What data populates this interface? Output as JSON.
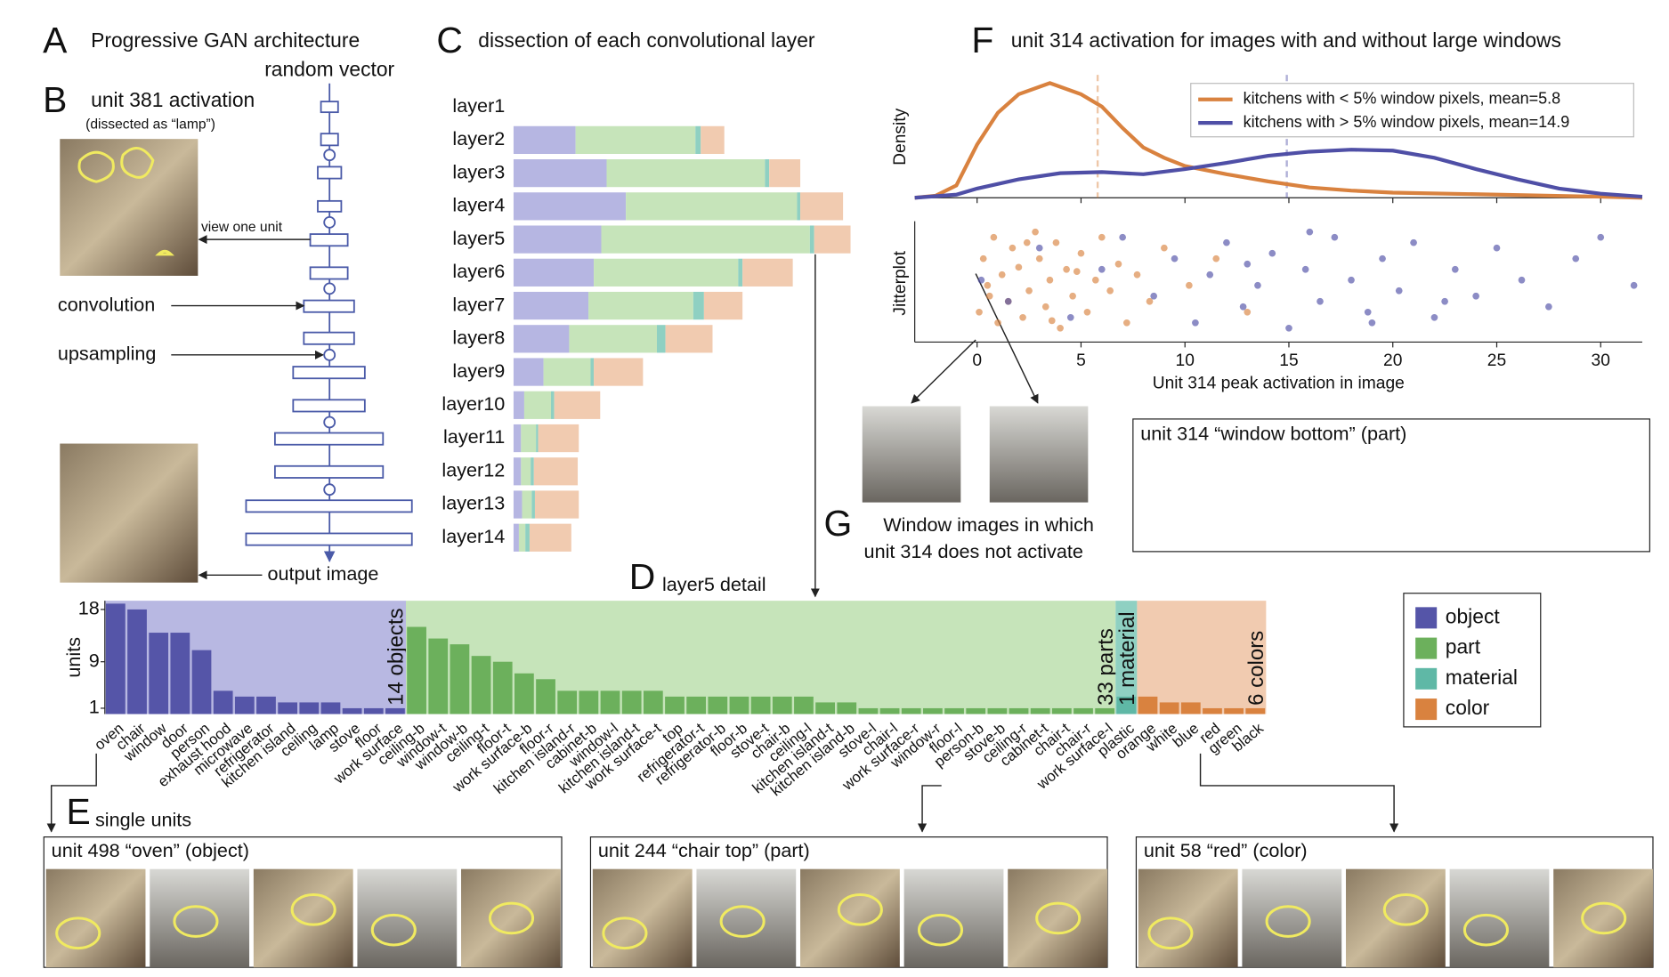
{
  "labels": {
    "A": "A",
    "a_title": "Progressive GAN architecture",
    "random_vector": "random vector",
    "B": "B",
    "b_title": "unit 381 activation",
    "b_sub": "(dissected as “lamp”)",
    "view_one_unit": "view one unit",
    "convolution": "convolution",
    "upsampling": "upsampling",
    "output_image": "output image",
    "C": "C",
    "D": "D",
    "E": "E",
    "e_title": "single units",
    "e1": "unit 498 “oven” (object)",
    "e2": "unit 244 “chair top” (part)",
    "e3": "unit 58 “red” (color)",
    "F": "F",
    "G": "G",
    "g1": "Window images in which",
    "g2": "unit 314 does not activate",
    "g_unit": "unit 314 “window bottom” (part)"
  },
  "chart_data": [
    {
      "type": "hstack",
      "title": "dissection of each convolutional layer",
      "categories": [
        "layer1",
        "layer2",
        "layer3",
        "layer4",
        "layer5",
        "layer6",
        "layer7",
        "layer8",
        "layer9",
        "layer10",
        "layer11",
        "layer12",
        "layer13",
        "layer14"
      ],
      "series": [
        {
          "color": "#b6b6e2",
          "values": [
            0,
            58,
            87,
            105,
            82,
            75,
            70,
            52,
            28,
            10,
            7,
            7,
            8,
            5
          ]
        },
        {
          "color": "#c6e4ba",
          "values": [
            0,
            112,
            148,
            160,
            195,
            135,
            98,
            82,
            44,
            25,
            14,
            9,
            9,
            6
          ]
        },
        {
          "color": "#8fd0c2",
          "values": [
            0,
            5,
            4,
            3,
            4,
            4,
            10,
            8,
            3,
            3,
            2,
            3,
            3,
            4
          ]
        },
        {
          "color": "#f1cbb0",
          "values": [
            0,
            22,
            29,
            40,
            34,
            47,
            36,
            44,
            46,
            43,
            38,
            41,
            41,
            39
          ]
        }
      ]
    },
    {
      "type": "grouped-bar",
      "title": "layer5 detail",
      "ylabel": "units",
      "ylim": [
        0,
        19.5
      ],
      "yticks": [
        1,
        9,
        18
      ],
      "legend": "right",
      "groups": [
        {
          "name": "object",
          "label": "14 objects",
          "color": "#5555a8",
          "background": "#b8b8e2",
          "categories": [
            "oven",
            "chair",
            "window",
            "door",
            "person",
            "exhaust hood",
            "microwave",
            "refrigerator",
            "kitchen island",
            "ceiling",
            "lamp",
            "stove",
            "floor",
            "work surface"
          ],
          "values": [
            19,
            18,
            14,
            14,
            11,
            4,
            3,
            3,
            2,
            2,
            2,
            1,
            1,
            1
          ]
        },
        {
          "name": "part",
          "label": "33 parts",
          "color": "#6cb05c",
          "background": "#c6e4ba",
          "categories": [
            "ceiling-b",
            "window-t",
            "window-b",
            "ceiling-t",
            "floor-t",
            "work surface-b",
            "floor-r",
            "kitchen island-r",
            "cabinet-b",
            "window-l",
            "kitchen island-t",
            "work surface-t",
            "top",
            "refrigerator-t",
            "refrigerator-b",
            "floor-b",
            "stove-t",
            "chair-b",
            "ceiling-l",
            "kitchen island-t",
            "kitchen island-b",
            "stove-l",
            "chair-l",
            "work surface-r",
            "window-r",
            "floor-l",
            "person-b",
            "stove-b",
            "ceiling-r",
            "cabinet-t",
            "chair-t",
            "chair-r",
            "work surface-l"
          ],
          "values": [
            15,
            13,
            12,
            10,
            9,
            7,
            6,
            4,
            4,
            4,
            4,
            4,
            3,
            3,
            3,
            3,
            3,
            3,
            3,
            2,
            2,
            1,
            1,
            1,
            1,
            1,
            1,
            1,
            1,
            1,
            1,
            1,
            1
          ]
        },
        {
          "name": "material",
          "label": "1 material",
          "color": "#5fb8a6",
          "background": "#8fd0c2",
          "categories": [
            "plastic"
          ],
          "values": [
            3
          ]
        },
        {
          "name": "color",
          "label": "6 colors",
          "color": "#d9823f",
          "background": "#f1cbb0",
          "categories": [
            "orange",
            "white",
            "blue",
            "red",
            "green",
            "black"
          ],
          "values": [
            3,
            2,
            2,
            1,
            1,
            1
          ]
        }
      ]
    },
    {
      "type": "density",
      "title": "unit 314 activation for images with and without large windows",
      "ylabel": "Density",
      "jitter_label": "Jitterplot",
      "xlabel": "Unit 314 peak activation in image",
      "xlim": [
        -3,
        32
      ],
      "xticks": [
        0,
        5,
        10,
        15,
        20,
        25,
        30
      ],
      "ylim": [
        0,
        0.12
      ],
      "jitter_ylim": [
        0,
        1
      ],
      "legend": "upper right",
      "series": [
        {
          "name": "kitchens with < 5% window pixels, mean=5.8",
          "color": "#d9823f",
          "mean": 5.8,
          "x": [
            -3,
            -2,
            -1,
            0,
            1,
            2,
            3.5,
            5,
            6,
            7,
            8,
            9,
            10,
            12,
            14,
            16,
            18,
            20,
            25,
            30,
            32
          ],
          "values": [
            0,
            0.002,
            0.012,
            0.052,
            0.083,
            0.101,
            0.112,
            0.101,
            0.089,
            0.068,
            0.049,
            0.039,
            0.031,
            0.023,
            0.016,
            0.01,
            0.007,
            0.005,
            0.003,
            0.001,
            0
          ],
          "jitter_x": [
            0.1,
            0.3,
            0.5,
            0.8,
            1.0,
            1.2,
            1.5,
            1.7,
            2.0,
            2.2,
            2.5,
            2.8,
            3.0,
            3.3,
            3.5,
            3.8,
            4.0,
            4.3,
            4.6,
            5.0,
            5.3,
            5.7,
            6.0,
            6.4,
            6.8,
            7.2,
            7.7,
            8.3,
            9.0,
            10.2,
            11.5,
            13.0,
            0.6,
            2.4,
            3.6,
            4.8
          ],
          "jitter_y": [
            0.2,
            0.7,
            0.45,
            0.9,
            0.1,
            0.55,
            0.3,
            0.8,
            0.62,
            0.15,
            0.4,
            0.95,
            0.7,
            0.25,
            0.5,
            0.85,
            0.05,
            0.6,
            0.35,
            0.75,
            0.2,
            0.5,
            0.9,
            0.4,
            0.65,
            0.1,
            0.55,
            0.3,
            0.8,
            0.45,
            0.7,
            0.2,
            0.35,
            0.85,
            0.12,
            0.58
          ]
        },
        {
          "name": "kitchens with > 5% window pixels, mean=14.9",
          "color": "#4f4fa6",
          "mean": 14.9,
          "x": [
            -3,
            -1,
            0,
            2,
            4,
            6,
            8,
            10,
            12,
            14,
            16,
            18,
            20,
            22,
            24,
            26,
            28,
            30,
            32
          ],
          "values": [
            0,
            0.003,
            0.009,
            0.018,
            0.024,
            0.025,
            0.023,
            0.028,
            0.034,
            0.041,
            0.045,
            0.047,
            0.046,
            0.039,
            0.028,
            0.018,
            0.009,
            0.004,
            0.001
          ],
          "jitter_x": [
            0.2,
            1.5,
            3.0,
            4.5,
            6.0,
            7.0,
            8.5,
            9.5,
            10.5,
            11.2,
            12.0,
            12.8,
            13.5,
            14.2,
            15.0,
            15.8,
            16.5,
            17.2,
            18.0,
            18.8,
            19.5,
            20.3,
            21.0,
            22.0,
            23.0,
            24.0,
            25.0,
            26.2,
            27.5,
            28.8,
            30.0,
            31.6,
            16.0,
            19.0,
            13.0,
            22.5
          ],
          "jitter_y": [
            0.5,
            0.3,
            0.8,
            0.15,
            0.6,
            0.9,
            0.35,
            0.7,
            0.1,
            0.55,
            0.85,
            0.25,
            0.45,
            0.75,
            0.05,
            0.6,
            0.3,
            0.9,
            0.5,
            0.2,
            0.7,
            0.4,
            0.85,
            0.15,
            0.6,
            0.35,
            0.8,
            0.5,
            0.25,
            0.7,
            0.9,
            0.45,
            0.95,
            0.1,
            0.65,
            0.3
          ]
        }
      ]
    }
  ]
}
